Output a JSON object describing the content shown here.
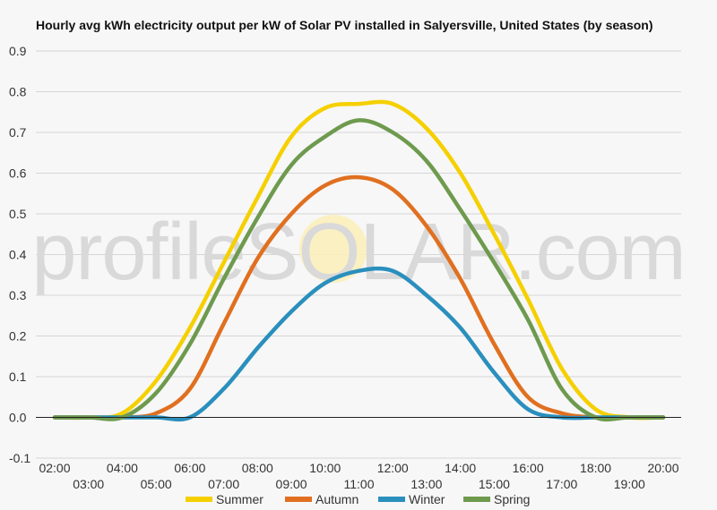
{
  "chart_data": {
    "type": "line",
    "title": "Hourly avg kWh electricity output per kW of Solar PV installed in Salyersville, United States (by season)",
    "xlabel": "",
    "ylabel": "",
    "ylim": [
      -0.1,
      0.9
    ],
    "yticks": [
      -0.1,
      0.0,
      0.1,
      0.2,
      0.3,
      0.4,
      0.5,
      0.6,
      0.7,
      0.8,
      0.9
    ],
    "ytick_labels": [
      "-0.1",
      "0.0",
      "0.1",
      "0.2",
      "0.3",
      "0.4",
      "0.5",
      "0.6",
      "0.7",
      "0.8",
      "0.9"
    ],
    "categories": [
      "02:00",
      "03:00",
      "04:00",
      "05:00",
      "06:00",
      "07:00",
      "08:00",
      "09:00",
      "10:00",
      "11:00",
      "12:00",
      "13:00",
      "14:00",
      "15:00",
      "16:00",
      "17:00",
      "18:00",
      "19:00",
      "20:00"
    ],
    "grid": true,
    "legend_position": "bottom",
    "watermark": "profileSOLAR.com",
    "series": [
      {
        "name": "Summer",
        "color": "#f5d000",
        "values": [
          0,
          0,
          0.01,
          0.09,
          0.22,
          0.38,
          0.54,
          0.69,
          0.76,
          0.77,
          0.77,
          0.71,
          0.6,
          0.45,
          0.29,
          0.12,
          0.02,
          0,
          0
        ]
      },
      {
        "name": "Autumn",
        "color": "#e07020",
        "values": [
          0,
          0,
          0,
          0.01,
          0.07,
          0.23,
          0.39,
          0.5,
          0.57,
          0.59,
          0.56,
          0.47,
          0.34,
          0.18,
          0.05,
          0.01,
          0,
          0,
          0
        ]
      },
      {
        "name": "Winter",
        "color": "#2a8fbd",
        "values": [
          0,
          0,
          0,
          0,
          0,
          0.07,
          0.17,
          0.26,
          0.33,
          0.36,
          0.36,
          0.3,
          0.22,
          0.11,
          0.02,
          0,
          0,
          0,
          0
        ]
      },
      {
        "name": "Spring",
        "color": "#6e9a4e",
        "values": [
          0,
          0,
          0,
          0.06,
          0.18,
          0.34,
          0.49,
          0.62,
          0.69,
          0.73,
          0.7,
          0.63,
          0.51,
          0.38,
          0.24,
          0.07,
          0,
          0,
          0
        ]
      }
    ]
  }
}
